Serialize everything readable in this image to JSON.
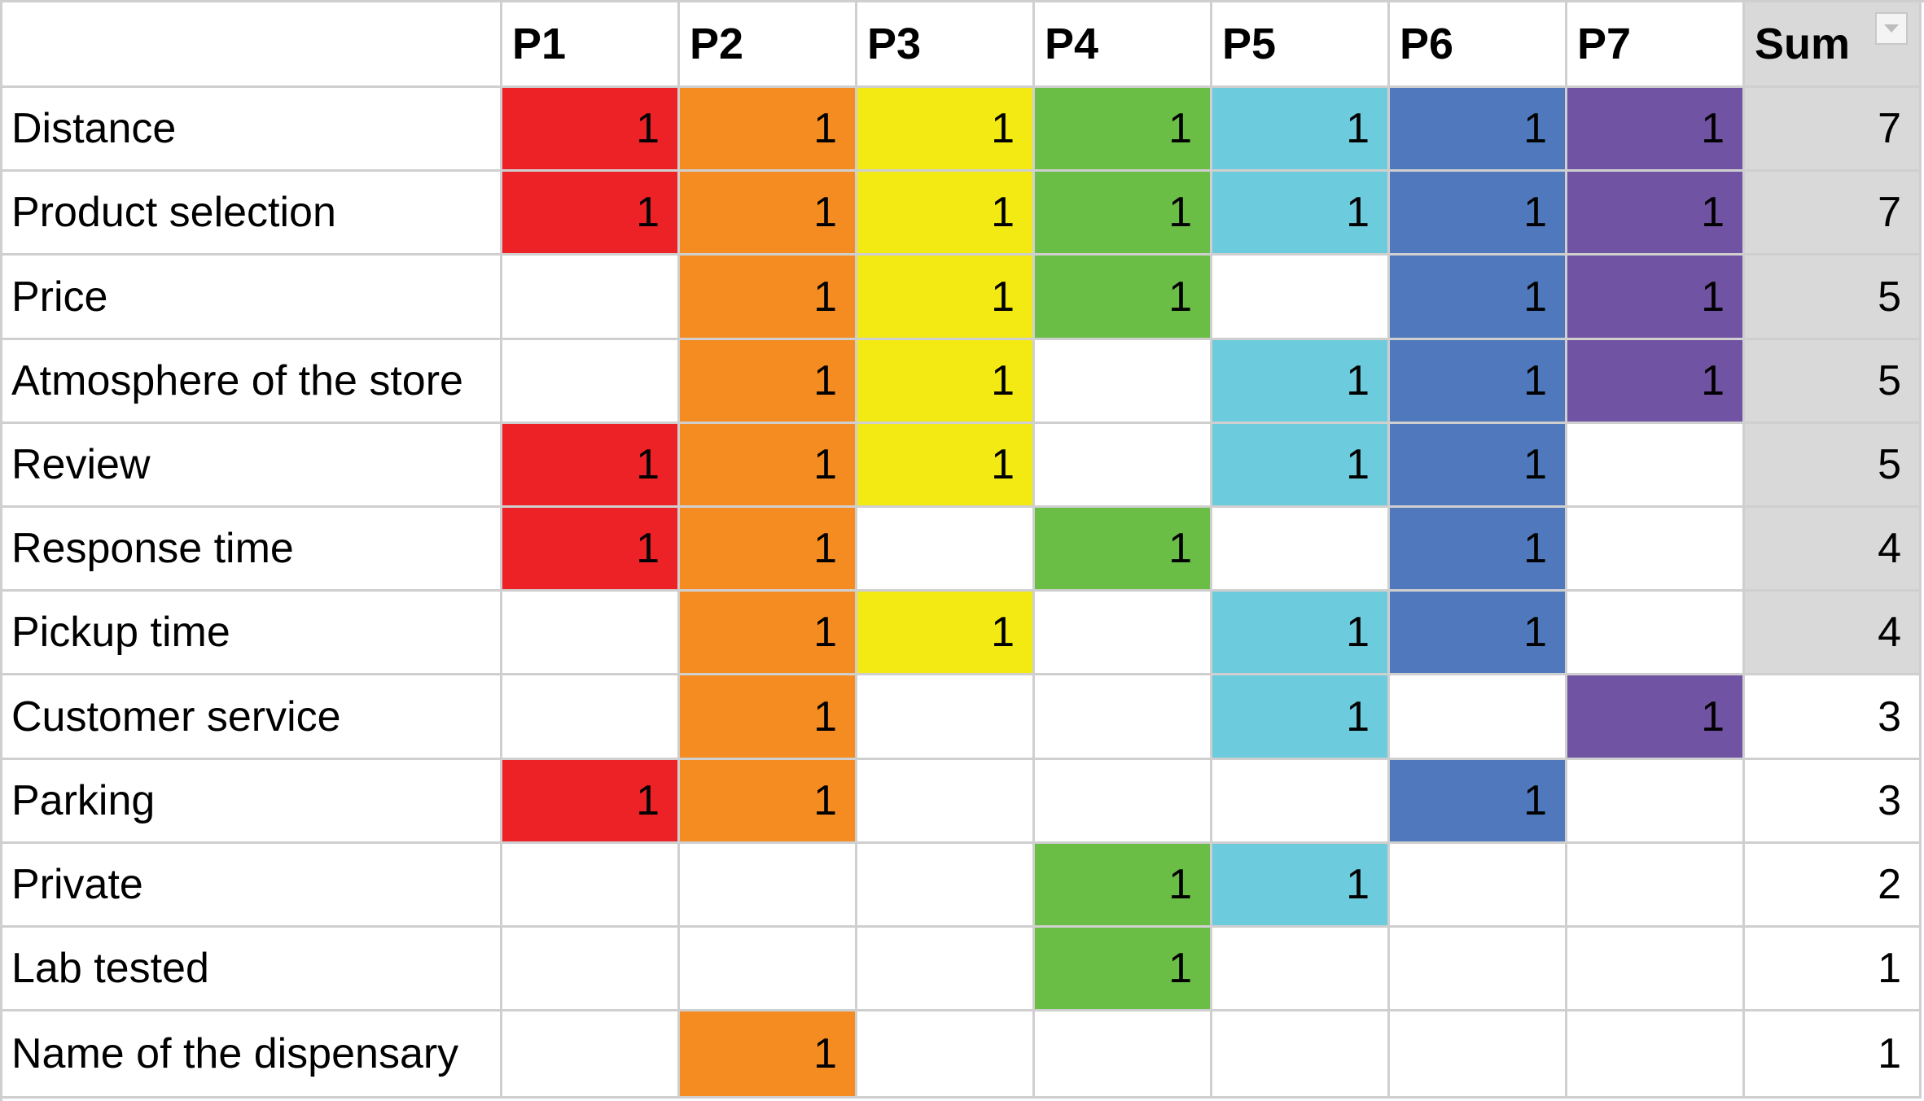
{
  "table": {
    "header": {
      "corner": "",
      "participants": [
        "P1",
        "P2",
        "P3",
        "P4",
        "P5",
        "P6",
        "P7"
      ],
      "sum": "Sum"
    },
    "colors": {
      "P1": "#ec2227",
      "P2": "#f58c22",
      "P3": "#f3ea14",
      "P4": "#6abd45",
      "P5": "#6ccbdc",
      "P6": "#4f79bc",
      "P7": "#7153a3",
      "sum_shaded": "#d9d9d9",
      "grid": "#cfcfcf"
    },
    "rows": [
      {
        "label": "Distance",
        "cells": [
          "1",
          "1",
          "1",
          "1",
          "1",
          "1",
          "1"
        ],
        "sum": "7",
        "sum_shaded": true
      },
      {
        "label": "Product selection",
        "cells": [
          "1",
          "1",
          "1",
          "1",
          "1",
          "1",
          "1"
        ],
        "sum": "7",
        "sum_shaded": true
      },
      {
        "label": "Price",
        "cells": [
          "",
          "1",
          "1",
          "1",
          "",
          "1",
          "1"
        ],
        "sum": "5",
        "sum_shaded": true
      },
      {
        "label": "Atmosphere of the store",
        "cells": [
          "",
          "1",
          "1",
          "",
          "1",
          "1",
          "1"
        ],
        "sum": "5",
        "sum_shaded": true
      },
      {
        "label": "Review",
        "cells": [
          "1",
          "1",
          "1",
          "",
          "1",
          "1",
          ""
        ],
        "sum": "5",
        "sum_shaded": true
      },
      {
        "label": "Response time",
        "cells": [
          "1",
          "1",
          "",
          "1",
          "",
          "1",
          ""
        ],
        "sum": "4",
        "sum_shaded": true
      },
      {
        "label": "Pickup time",
        "cells": [
          "",
          "1",
          "1",
          "",
          "1",
          "1",
          ""
        ],
        "sum": "4",
        "sum_shaded": true
      },
      {
        "label": "Customer service",
        "cells": [
          "",
          "1",
          "",
          "",
          "1",
          "",
          "1"
        ],
        "sum": "3",
        "sum_shaded": false
      },
      {
        "label": "Parking",
        "cells": [
          "1",
          "1",
          "",
          "",
          "",
          "1",
          ""
        ],
        "sum": "3",
        "sum_shaded": false
      },
      {
        "label": "Private",
        "cells": [
          "",
          "",
          "",
          "1",
          "1",
          "",
          ""
        ],
        "sum": "2",
        "sum_shaded": false
      },
      {
        "label": "Lab tested",
        "cells": [
          "",
          "",
          "",
          "1",
          "",
          "",
          ""
        ],
        "sum": "1",
        "sum_shaded": false
      },
      {
        "label": "Name of the dispensary",
        "cells": [
          "",
          "1",
          "",
          "",
          "",
          "",
          ""
        ],
        "sum": "1",
        "sum_shaded": false
      }
    ],
    "filter_icon": "filter-dropdown-icon"
  }
}
